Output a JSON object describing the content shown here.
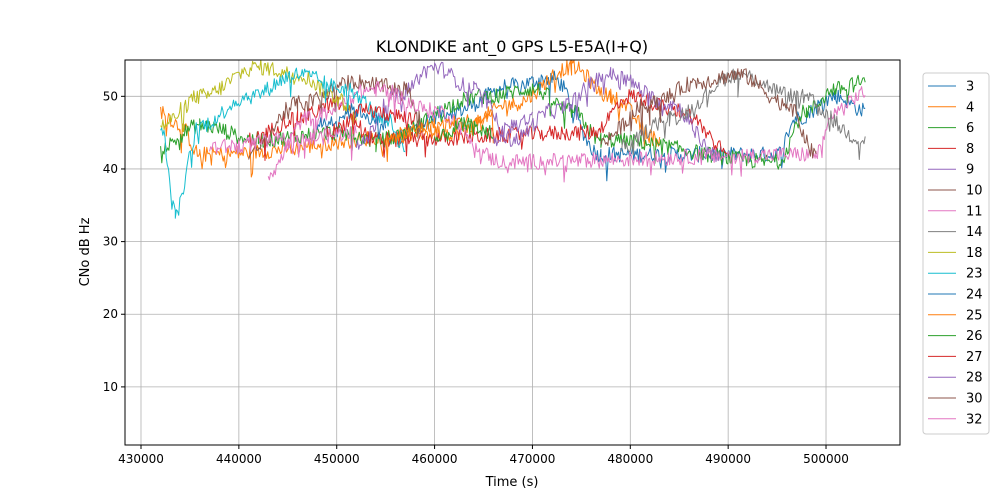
{
  "chart_data": {
    "type": "line",
    "title": "KLONDIKE ant_0 GPS L5-E5A(I+Q)",
    "xlabel": "Time (s)",
    "ylabel": "CNo dB Hz",
    "xlim": [
      428365,
      507560
    ],
    "ylim": [
      2.0,
      55.0
    ],
    "xticks": [
      430000,
      440000,
      450000,
      460000,
      470000,
      480000,
      490000,
      500000
    ],
    "yticks": [
      10,
      20,
      30,
      40,
      50
    ],
    "grid": true,
    "legend_placement": "right-outside",
    "series": [
      {
        "name": "3",
        "color": "#1f77b4",
        "points": [
          [
            455000,
            44
          ],
          [
            462000,
            48
          ],
          [
            468000,
            51.5
          ],
          [
            472000,
            52.5
          ],
          [
            477000,
            42
          ],
          [
            495000,
            42
          ],
          [
            497000,
            47
          ],
          [
            501000,
            50
          ],
          [
            504000,
            48
          ]
        ]
      },
      {
        "name": "4",
        "color": "#ff7f0e",
        "points": [
          [
            432000,
            48
          ],
          [
            434000,
            46
          ],
          [
            436000,
            42
          ],
          [
            462000,
            45
          ],
          [
            468000,
            49
          ],
          [
            474000,
            54
          ],
          [
            478000,
            50
          ],
          [
            483000,
            44
          ]
        ]
      },
      {
        "name": "6",
        "color": "#2ca02c",
        "points": [
          [
            432000,
            43
          ],
          [
            436000,
            46
          ],
          [
            442000,
            44
          ],
          [
            450000,
            45
          ],
          [
            454000,
            44
          ],
          [
            465000,
            50
          ],
          [
            470000,
            51
          ],
          [
            474000,
            48
          ],
          [
            477000,
            44
          ],
          [
            495000,
            41
          ],
          [
            498000,
            48
          ],
          [
            501000,
            51
          ],
          [
            504000,
            52
          ]
        ]
      },
      {
        "name": "8",
        "color": "#d62728",
        "points": [
          [
            441000,
            44
          ],
          [
            446000,
            47
          ],
          [
            450000,
            49
          ],
          [
            454000,
            44
          ],
          [
            476000,
            45
          ],
          [
            480000,
            50
          ],
          [
            485000,
            48
          ],
          [
            490000,
            43
          ]
        ]
      },
      {
        "name": "9",
        "color": "#9467bd",
        "points": [
          [
            452000,
            43
          ],
          [
            456000,
            50
          ],
          [
            460000,
            54
          ],
          [
            464000,
            51
          ],
          [
            468000,
            44
          ],
          [
            472000,
            48
          ],
          [
            478000,
            53
          ],
          [
            484000,
            49
          ],
          [
            489000,
            42
          ]
        ]
      },
      {
        "name": "10",
        "color": "#8c564b",
        "points": [
          [
            441000,
            42
          ],
          [
            446000,
            49
          ],
          [
            452000,
            52
          ],
          [
            457000,
            51
          ],
          [
            459000,
            46
          ]
        ]
      },
      {
        "name": "11",
        "color": "#e377c2",
        "points": [
          [
            443000,
            39.5
          ],
          [
            447000,
            47
          ],
          [
            454000,
            51
          ],
          [
            460000,
            48
          ],
          [
            467000,
            41
          ],
          [
            499000,
            42
          ],
          [
            501000,
            48
          ],
          [
            504000,
            50.5
          ]
        ]
      },
      {
        "name": "14",
        "color": "#7f7f7f",
        "points": [
          [
            479000,
            43
          ],
          [
            484000,
            47
          ],
          [
            491000,
            53
          ],
          [
            497000,
            50
          ],
          [
            504000,
            44
          ]
        ]
      },
      {
        "name": "18",
        "color": "#bcbd22",
        "points": [
          [
            432000,
            46
          ],
          [
            436000,
            50
          ],
          [
            442000,
            54
          ],
          [
            446000,
            53
          ],
          [
            450000,
            50
          ],
          [
            452000,
            47
          ]
        ]
      },
      {
        "name": "23",
        "color": "#17becf",
        "points": [
          [
            432000,
            46
          ],
          [
            433500,
            34
          ],
          [
            436000,
            46
          ],
          [
            441000,
            50
          ],
          [
            446000,
            53
          ],
          [
            451000,
            51
          ],
          [
            455000,
            47
          ],
          [
            457000,
            43
          ]
        ]
      },
      {
        "name": "24",
        "color": "#1f77b4",
        "points": [
          [
            448000,
            46
          ],
          [
            452000,
            48
          ],
          [
            455000,
            46
          ]
        ]
      },
      {
        "name": "25",
        "color": "#ff7f0e",
        "points": [
          [
            455000,
            44
          ],
          [
            460000,
            46
          ],
          [
            466000,
            47
          ]
        ]
      },
      {
        "name": "26",
        "color": "#2ca02c",
        "points": [
          [
            460000,
            44
          ],
          [
            463000,
            46
          ],
          [
            466000,
            45
          ]
        ]
      },
      {
        "name": "27",
        "color": "#d62728",
        "points": [
          [
            449000,
            45
          ],
          [
            453000,
            48
          ],
          [
            458000,
            47
          ]
        ]
      },
      {
        "name": "28",
        "color": "#9467bd",
        "points": [
          [
            466000,
            44
          ],
          [
            468000,
            46
          ],
          [
            470000,
            47
          ]
        ]
      },
      {
        "name": "30",
        "color": "#8c564b",
        "points": [
          [
            477000,
            44
          ],
          [
            482000,
            49
          ],
          [
            487000,
            52
          ],
          [
            491000,
            53
          ],
          [
            496000,
            49
          ],
          [
            499000,
            42
          ]
        ]
      },
      {
        "name": "32",
        "color": "#e377c2",
        "points": [
          [
            437000,
            43
          ],
          [
            446000,
            44
          ],
          [
            452000,
            45
          ]
        ]
      }
    ]
  }
}
